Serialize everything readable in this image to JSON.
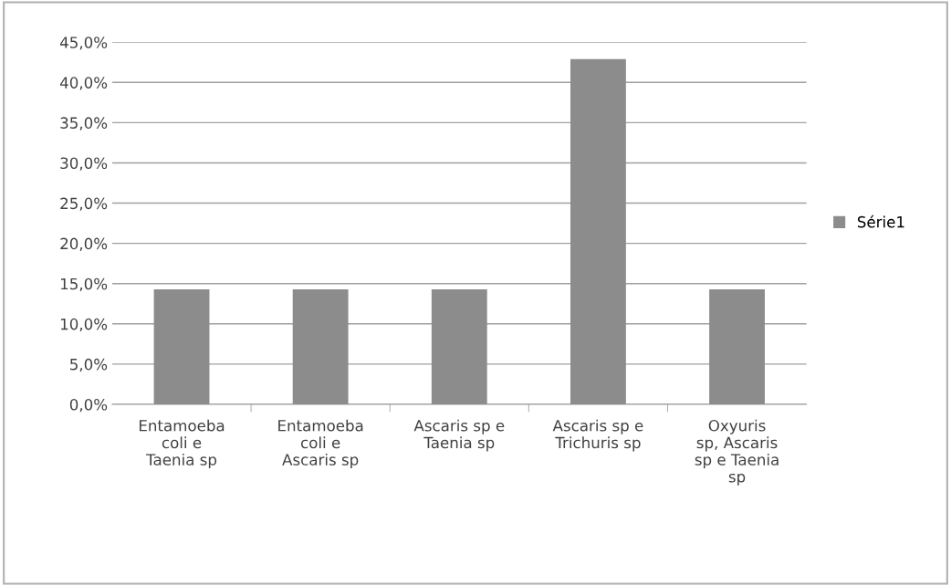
{
  "chart_data": {
    "type": "bar",
    "categories": [
      "Entamoeba\ncoli e\nTaenia sp",
      "Entamoeba\ncoli e\nAscaris sp",
      "Ascaris sp e\nTaenia sp",
      "Ascaris sp e\nTrichuris sp",
      "Oxyuris\nsp, Ascaris\nsp e Taenia\nsp"
    ],
    "series": [
      {
        "name": "Série1",
        "color": "#8c8c8c",
        "values": [
          14.3,
          14.3,
          14.3,
          42.9,
          14.3
        ]
      }
    ],
    "ylim": [
      0,
      45
    ],
    "yticks": [
      {
        "value": 0,
        "label": "0,0%"
      },
      {
        "value": 5,
        "label": "5,0%"
      },
      {
        "value": 10,
        "label": "10,0%"
      },
      {
        "value": 15,
        "label": "15,0%"
      },
      {
        "value": 20,
        "label": "20,0%"
      },
      {
        "value": 25,
        "label": "25,0%"
      },
      {
        "value": 30,
        "label": "30,0%"
      },
      {
        "value": 35,
        "label": "35,0%"
      },
      {
        "value": 40,
        "label": "40,0%"
      },
      {
        "value": 45,
        "label": "45,0%"
      }
    ],
    "grid": "y",
    "legend": "right"
  }
}
